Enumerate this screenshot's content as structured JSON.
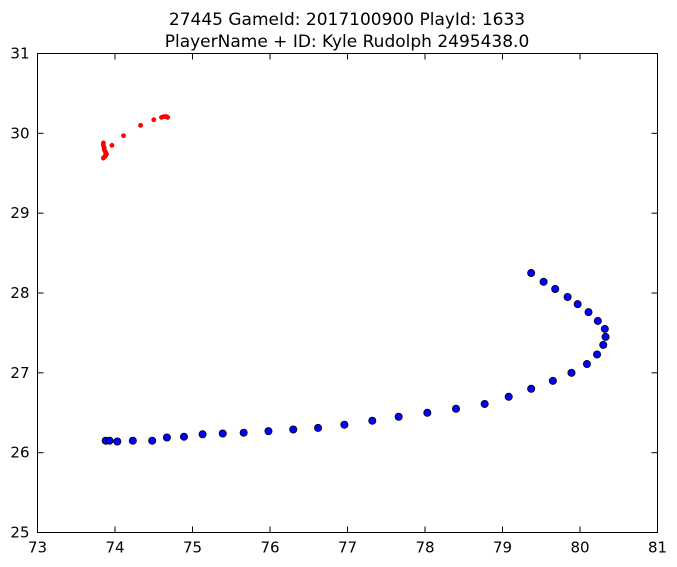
{
  "chart_data": {
    "type": "scatter",
    "title": "27445 GameId: 2017100900 PlayId: 1633",
    "subtitle": "PlayerName + ID: Kyle Rudolph 2495438.0",
    "xlabel": "",
    "ylabel": "",
    "xlim": [
      73,
      81
    ],
    "ylim": [
      25,
      31
    ],
    "x_ticks": [
      "73",
      "74",
      "75",
      "76",
      "77",
      "78",
      "79",
      "80",
      "81"
    ],
    "y_ticks": [
      "25",
      "26",
      "27",
      "28",
      "29",
      "30",
      "31"
    ],
    "grid": false,
    "legend": "none",
    "series": [
      {
        "color": "#ff0000",
        "marker": "small-dot",
        "points": [
          [
            73.85,
            29.69
          ],
          [
            73.86,
            29.7
          ],
          [
            73.87,
            29.71
          ],
          [
            73.88,
            29.72
          ],
          [
            73.88,
            29.73
          ],
          [
            73.89,
            29.74
          ],
          [
            73.88,
            29.76
          ],
          [
            73.87,
            29.78
          ],
          [
            73.86,
            29.8
          ],
          [
            73.86,
            29.82
          ],
          [
            73.85,
            29.85
          ],
          [
            73.85,
            29.88
          ],
          [
            73.96,
            29.85
          ],
          [
            74.11,
            29.97
          ],
          [
            74.33,
            30.1
          ],
          [
            74.5,
            30.17
          ],
          [
            74.6,
            30.2
          ],
          [
            74.63,
            30.21
          ],
          [
            74.66,
            30.21
          ],
          [
            74.68,
            30.2
          ]
        ]
      },
      {
        "color": "#0000ff",
        "marker": "circle",
        "points": [
          [
            73.88,
            26.15
          ],
          [
            73.93,
            26.15
          ],
          [
            74.03,
            26.14
          ],
          [
            74.23,
            26.15
          ],
          [
            74.48,
            26.15
          ],
          [
            74.67,
            26.19
          ],
          [
            74.89,
            26.2
          ],
          [
            75.13,
            26.23
          ],
          [
            75.39,
            26.24
          ],
          [
            75.66,
            26.25
          ],
          [
            75.98,
            26.27
          ],
          [
            76.3,
            26.29
          ],
          [
            76.62,
            26.31
          ],
          [
            76.96,
            26.35
          ],
          [
            77.32,
            26.4
          ],
          [
            77.66,
            26.45
          ],
          [
            78.03,
            26.5
          ],
          [
            78.4,
            26.55
          ],
          [
            78.77,
            26.61
          ],
          [
            79.08,
            26.7
          ],
          [
            79.37,
            26.8
          ],
          [
            79.65,
            26.9
          ],
          [
            79.89,
            27.0
          ],
          [
            80.09,
            27.11
          ],
          [
            80.22,
            27.23
          ],
          [
            80.3,
            27.35
          ],
          [
            80.33,
            27.45
          ],
          [
            80.32,
            27.55
          ],
          [
            80.23,
            27.65
          ],
          [
            80.11,
            27.76
          ],
          [
            79.97,
            27.86
          ],
          [
            79.84,
            27.95
          ],
          [
            79.68,
            28.05
          ],
          [
            79.53,
            28.14
          ],
          [
            79.37,
            28.25
          ]
        ]
      }
    ]
  }
}
